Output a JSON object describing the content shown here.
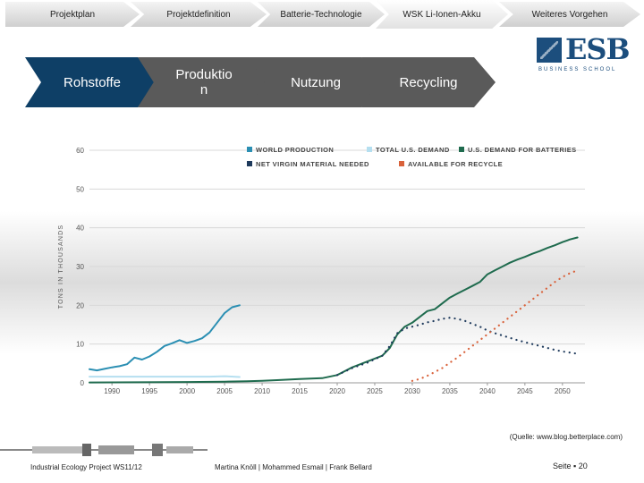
{
  "nav": {
    "tabs": [
      {
        "label": "Projektplan"
      },
      {
        "label": "Projektdefinition"
      },
      {
        "label": "Batterie-Technologie"
      },
      {
        "label": "WSK Li-Ionen-Akku"
      },
      {
        "label": "Weiteres Vorgehen"
      }
    ]
  },
  "phases": [
    {
      "label": "Rohstoffe",
      "color": "#0e3f66"
    },
    {
      "label": "Produktio n",
      "color": "#5a5a5a"
    },
    {
      "label": "Nutzung",
      "color": "#5a5a5a"
    },
    {
      "label": "Recycling",
      "color": "#5a5a5a"
    }
  ],
  "logo": {
    "text": "ESB",
    "subtitle": "BUSINESS SCHOOL",
    "color": "#1c4e7d"
  },
  "chart_data": {
    "type": "line",
    "ylabel": "TONS IN THOUSANDS",
    "ylim": [
      0,
      60
    ],
    "yticks": [
      0,
      10,
      20,
      30,
      40,
      50,
      60
    ],
    "xlim": [
      1987,
      2053
    ],
    "xticks": [
      1990,
      1995,
      2000,
      2005,
      2010,
      2015,
      2020,
      2025,
      2030,
      2035,
      2040,
      2045,
      2050
    ],
    "grid": true,
    "legend": "top",
    "series": [
      {
        "name": "WORLD PRODUCTION",
        "color": "#2b8fb3",
        "style": "solid",
        "x": [
          1987,
          1988,
          1989,
          1990,
          1991,
          1992,
          1993,
          1994,
          1995,
          1996,
          1997,
          1998,
          1999,
          2000,
          2001,
          2002,
          2003,
          2004,
          2005,
          2006,
          2007
        ],
        "y": [
          3.5,
          3.2,
          3.6,
          4.0,
          4.3,
          4.8,
          6.5,
          6.0,
          6.8,
          8.0,
          9.5,
          10.2,
          11.0,
          10.3,
          10.8,
          11.5,
          13.0,
          15.5,
          18.0,
          19.5,
          20.0
        ]
      },
      {
        "name": "TOTAL U.S. DEMAND",
        "color": "#b5dff0",
        "style": "solid",
        "x": [
          1987,
          1990,
          1995,
          2000,
          2003,
          2005,
          2007
        ],
        "y": [
          1.6,
          1.6,
          1.6,
          1.6,
          1.6,
          1.7,
          1.5
        ]
      },
      {
        "name": "U.S. DEMAND FOR BATTERIES",
        "color": "#1f6b4e",
        "style": "solid",
        "x": [
          1987,
          2000,
          2005,
          2008,
          2010,
          2012,
          2015,
          2018,
          2020,
          2022,
          2024,
          2026,
          2027,
          2028,
          2029,
          2030,
          2031,
          2032,
          2033,
          2034,
          2035,
          2036,
          2037,
          2038,
          2039,
          2040,
          2041,
          2042,
          2043,
          2044,
          2045,
          2046,
          2047,
          2048,
          2049,
          2050,
          2051,
          2052
        ],
        "y": [
          0.1,
          0.2,
          0.3,
          0.4,
          0.5,
          0.7,
          1.0,
          1.2,
          2.0,
          4.0,
          5.5,
          7.0,
          9.0,
          12.5,
          14.5,
          15.5,
          17.0,
          18.5,
          19.0,
          20.5,
          22.0,
          23.0,
          24.0,
          25.0,
          26.0,
          28.0,
          29.0,
          30.0,
          31.0,
          31.8,
          32.5,
          33.3,
          34.0,
          34.8,
          35.5,
          36.3,
          37.0,
          37.5
        ]
      },
      {
        "name": "NET VIRGIN MATERIAL NEEDED",
        "color": "#1e3a5c",
        "style": "dotted",
        "x": [
          2020,
          2022,
          2024,
          2026,
          2027,
          2028,
          2029,
          2030,
          2031,
          2032,
          2033,
          2034,
          2035,
          2036,
          2037,
          2038,
          2039,
          2040,
          2041,
          2042,
          2043,
          2044,
          2045,
          2046,
          2047,
          2048,
          2049,
          2050,
          2051,
          2052
        ],
        "y": [
          2.0,
          3.8,
          5.2,
          7.0,
          9.5,
          12.8,
          14.0,
          14.5,
          15.0,
          15.6,
          16.0,
          16.5,
          16.8,
          16.5,
          16.0,
          15.2,
          14.5,
          13.5,
          12.8,
          12.2,
          11.6,
          11.0,
          10.5,
          10.0,
          9.5,
          9.0,
          8.5,
          8.1,
          7.8,
          7.5
        ]
      },
      {
        "name": "AVAILABLE FOR RECYCLE",
        "color": "#d9623b",
        "style": "dotted",
        "x": [
          2030,
          2031,
          2032,
          2033,
          2034,
          2035,
          2036,
          2037,
          2038,
          2039,
          2040,
          2041,
          2042,
          2043,
          2044,
          2045,
          2046,
          2047,
          2048,
          2049,
          2050,
          2051,
          2052
        ],
        "y": [
          0.5,
          1.0,
          1.8,
          2.8,
          3.8,
          5.2,
          6.5,
          8.0,
          9.5,
          11.0,
          12.5,
          14.0,
          15.5,
          17.0,
          18.5,
          20.0,
          21.5,
          23.0,
          24.5,
          26.0,
          27.3,
          28.3,
          29.0
        ]
      }
    ]
  },
  "source": "(Quelle: www.blog.betterplace.com)",
  "footer": {
    "left": "Industrial Ecology Project WS11/12",
    "authors": "Martina Knöll   |   Mohammed Esmail   |   Frank Bellard",
    "page": "Seite ▪ 20"
  }
}
